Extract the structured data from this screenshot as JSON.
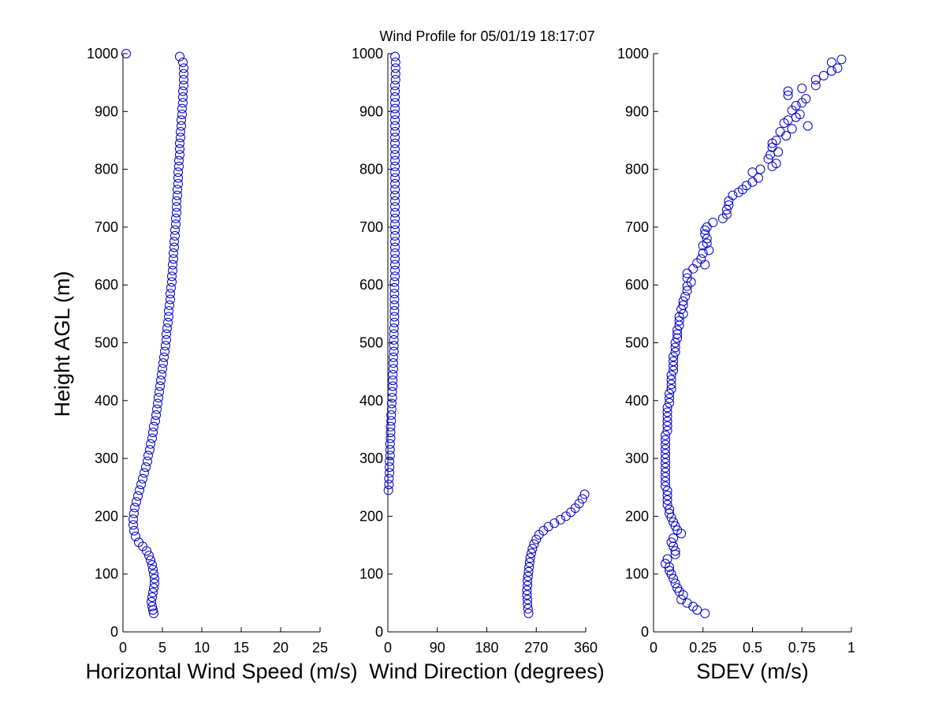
{
  "title": "Wind Profile for  05/01/19 18:17:07",
  "ylabel": "Height AGL (m)",
  "marker_color": "#0000cc",
  "chart_data": [
    {
      "type": "scatter",
      "name": "speed",
      "xlabel": "Horizontal Wind Speed (m/s)",
      "xlim": [
        0,
        25
      ],
      "xticks": [
        0,
        5,
        10,
        15,
        20,
        25
      ],
      "ylim": [
        0,
        1000
      ],
      "yticks": [
        0,
        100,
        200,
        300,
        400,
        500,
        600,
        700,
        800,
        900,
        1000
      ],
      "points": [
        [
          0.4,
          1000
        ],
        [
          7.2,
          995
        ],
        [
          7.6,
          985
        ],
        [
          7.7,
          975
        ],
        [
          7.7,
          965
        ],
        [
          7.7,
          955
        ],
        [
          7.7,
          945
        ],
        [
          7.6,
          935
        ],
        [
          7.6,
          925
        ],
        [
          7.6,
          915
        ],
        [
          7.5,
          905
        ],
        [
          7.5,
          895
        ],
        [
          7.4,
          885
        ],
        [
          7.4,
          875
        ],
        [
          7.3,
          865
        ],
        [
          7.3,
          855
        ],
        [
          7.2,
          845
        ],
        [
          7.2,
          835
        ],
        [
          7.2,
          825
        ],
        [
          7.1,
          815
        ],
        [
          7.1,
          805
        ],
        [
          7.0,
          795
        ],
        [
          7.0,
          785
        ],
        [
          7.0,
          775
        ],
        [
          6.9,
          765
        ],
        [
          6.9,
          755
        ],
        [
          6.8,
          745
        ],
        [
          6.8,
          735
        ],
        [
          6.8,
          725
        ],
        [
          6.7,
          715
        ],
        [
          6.7,
          705
        ],
        [
          6.6,
          695
        ],
        [
          6.6,
          685
        ],
        [
          6.5,
          675
        ],
        [
          6.5,
          665
        ],
        [
          6.4,
          655
        ],
        [
          6.4,
          645
        ],
        [
          6.3,
          635
        ],
        [
          6.3,
          625
        ],
        [
          6.2,
          615
        ],
        [
          6.2,
          605
        ],
        [
          6.1,
          595
        ],
        [
          6.0,
          585
        ],
        [
          6.0,
          575
        ],
        [
          5.9,
          565
        ],
        [
          5.8,
          555
        ],
        [
          5.8,
          545
        ],
        [
          5.7,
          535
        ],
        [
          5.6,
          525
        ],
        [
          5.5,
          515
        ],
        [
          5.5,
          505
        ],
        [
          5.4,
          495
        ],
        [
          5.3,
          485
        ],
        [
          5.2,
          475
        ],
        [
          5.1,
          465
        ],
        [
          5.0,
          455
        ],
        [
          4.9,
          445
        ],
        [
          4.8,
          435
        ],
        [
          4.7,
          425
        ],
        [
          4.6,
          415
        ],
        [
          4.5,
          405
        ],
        [
          4.4,
          395
        ],
        [
          4.3,
          385
        ],
        [
          4.2,
          375
        ],
        [
          4.1,
          365
        ],
        [
          3.9,
          355
        ],
        [
          3.8,
          345
        ],
        [
          3.7,
          335
        ],
        [
          3.5,
          325
        ],
        [
          3.4,
          315
        ],
        [
          3.2,
          305
        ],
        [
          3.1,
          295
        ],
        [
          2.9,
          285
        ],
        [
          2.7,
          275
        ],
        [
          2.5,
          265
        ],
        [
          2.3,
          255
        ],
        [
          2.1,
          245
        ],
        [
          1.9,
          235
        ],
        [
          1.7,
          225
        ],
        [
          1.5,
          215
        ],
        [
          1.4,
          205
        ],
        [
          1.3,
          195
        ],
        [
          1.3,
          185
        ],
        [
          1.4,
          175
        ],
        [
          1.6,
          165
        ],
        [
          2.0,
          155
        ],
        [
          2.5,
          148
        ],
        [
          3.0,
          140
        ],
        [
          3.3,
          132
        ],
        [
          3.5,
          124
        ],
        [
          3.7,
          116
        ],
        [
          3.8,
          108
        ],
        [
          3.9,
          100
        ],
        [
          4.0,
          92
        ],
        [
          4.0,
          84
        ],
        [
          3.9,
          76
        ],
        [
          3.8,
          68
        ],
        [
          3.7,
          60
        ],
        [
          3.6,
          52
        ],
        [
          3.7,
          44
        ],
        [
          3.8,
          38
        ],
        [
          3.9,
          32
        ]
      ]
    },
    {
      "type": "scatter",
      "name": "direction",
      "xlabel": "Wind Direction (degrees)",
      "xlim": [
        0,
        360
      ],
      "xticks": [
        0,
        90,
        180,
        270,
        360
      ],
      "ylim": [
        0,
        1000
      ],
      "yticks": [
        0,
        100,
        200,
        300,
        400,
        500,
        600,
        700,
        800,
        900,
        1000
      ],
      "points": [
        [
          13,
          995
        ],
        [
          14,
          985
        ],
        [
          14,
          975
        ],
        [
          14,
          965
        ],
        [
          14,
          955
        ],
        [
          13,
          945
        ],
        [
          13,
          935
        ],
        [
          13,
          925
        ],
        [
          13,
          915
        ],
        [
          13,
          905
        ],
        [
          13,
          895
        ],
        [
          13,
          885
        ],
        [
          13,
          875
        ],
        [
          13,
          865
        ],
        [
          13,
          855
        ],
        [
          13,
          845
        ],
        [
          13,
          835
        ],
        [
          13,
          825
        ],
        [
          13,
          815
        ],
        [
          13,
          805
        ],
        [
          13,
          795
        ],
        [
          13,
          785
        ],
        [
          13,
          775
        ],
        [
          13,
          765
        ],
        [
          13,
          755
        ],
        [
          13,
          745
        ],
        [
          13,
          735
        ],
        [
          13,
          725
        ],
        [
          13,
          715
        ],
        [
          13,
          705
        ],
        [
          13,
          695
        ],
        [
          13,
          685
        ],
        [
          13,
          675
        ],
        [
          13,
          665
        ],
        [
          13,
          655
        ],
        [
          13,
          645
        ],
        [
          13,
          635
        ],
        [
          13,
          625
        ],
        [
          13,
          615
        ],
        [
          12,
          605
        ],
        [
          12,
          595
        ],
        [
          12,
          585
        ],
        [
          12,
          575
        ],
        [
          12,
          565
        ],
        [
          12,
          555
        ],
        [
          12,
          545
        ],
        [
          12,
          535
        ],
        [
          11,
          525
        ],
        [
          11,
          515
        ],
        [
          11,
          505
        ],
        [
          11,
          495
        ],
        [
          11,
          485
        ],
        [
          10,
          475
        ],
        [
          10,
          465
        ],
        [
          10,
          455
        ],
        [
          9,
          445
        ],
        [
          9,
          435
        ],
        [
          9,
          425
        ],
        [
          8,
          415
        ],
        [
          8,
          405
        ],
        [
          7,
          395
        ],
        [
          7,
          385
        ],
        [
          6,
          375
        ],
        [
          6,
          365
        ],
        [
          5,
          355
        ],
        [
          5,
          345
        ],
        [
          5,
          335
        ],
        [
          4,
          325
        ],
        [
          4,
          315
        ],
        [
          4,
          305
        ],
        [
          3,
          295
        ],
        [
          3,
          285
        ],
        [
          3,
          275
        ],
        [
          2,
          265
        ],
        [
          2,
          255
        ],
        [
          1,
          245
        ],
        [
          358,
          238
        ],
        [
          354,
          230
        ],
        [
          348,
          222
        ],
        [
          341,
          214
        ],
        [
          333,
          207
        ],
        [
          324,
          200
        ],
        [
          314,
          194
        ],
        [
          303,
          188
        ],
        [
          292,
          182
        ],
        [
          283,
          175
        ],
        [
          275,
          168
        ],
        [
          270,
          160
        ],
        [
          266,
          152
        ],
        [
          263,
          144
        ],
        [
          261,
          136
        ],
        [
          259,
          128
        ],
        [
          258,
          120
        ],
        [
          257,
          112
        ],
        [
          256,
          104
        ],
        [
          255,
          96
        ],
        [
          254,
          88
        ],
        [
          254,
          80
        ],
        [
          253,
          72
        ],
        [
          253,
          64
        ],
        [
          254,
          56
        ],
        [
          254,
          48
        ],
        [
          255,
          40
        ],
        [
          256,
          32
        ]
      ]
    },
    {
      "type": "scatter",
      "name": "sdev",
      "xlabel": "SDEV  (m/s)",
      "xlim": [
        0,
        1
      ],
      "xticks": [
        0,
        0.25,
        0.5,
        0.75,
        1
      ],
      "ylim": [
        0,
        1000
      ],
      "yticks": [
        0,
        100,
        200,
        300,
        400,
        500,
        600,
        700,
        800,
        900,
        1000
      ],
      "points": [
        [
          0.95,
          990
        ],
        [
          0.9,
          985
        ],
        [
          0.93,
          975
        ],
        [
          0.9,
          970
        ],
        [
          0.86,
          962
        ],
        [
          0.82,
          955
        ],
        [
          0.82,
          945
        ],
        [
          0.75,
          940
        ],
        [
          0.68,
          935
        ],
        [
          0.68,
          928
        ],
        [
          0.77,
          922
        ],
        [
          0.75,
          915
        ],
        [
          0.72,
          910
        ],
        [
          0.7,
          902
        ],
        [
          0.74,
          895
        ],
        [
          0.72,
          890
        ],
        [
          0.68,
          885
        ],
        [
          0.66,
          880
        ],
        [
          0.78,
          875
        ],
        [
          0.7,
          870
        ],
        [
          0.64,
          865
        ],
        [
          0.67,
          858
        ],
        [
          0.62,
          850
        ],
        [
          0.6,
          845
        ],
        [
          0.6,
          838
        ],
        [
          0.63,
          830
        ],
        [
          0.59,
          825
        ],
        [
          0.58,
          818
        ],
        [
          0.62,
          810
        ],
        [
          0.6,
          805
        ],
        [
          0.54,
          800
        ],
        [
          0.5,
          795
        ],
        [
          0.53,
          785
        ],
        [
          0.5,
          778
        ],
        [
          0.47,
          772
        ],
        [
          0.45,
          765
        ],
        [
          0.43,
          760
        ],
        [
          0.4,
          755
        ],
        [
          0.38,
          745
        ],
        [
          0.38,
          738
        ],
        [
          0.37,
          730
        ],
        [
          0.37,
          722
        ],
        [
          0.35,
          715
        ],
        [
          0.3,
          708
        ],
        [
          0.27,
          700
        ],
        [
          0.26,
          695
        ],
        [
          0.26,
          688
        ],
        [
          0.27,
          680
        ],
        [
          0.27,
          672
        ],
        [
          0.25,
          668
        ],
        [
          0.28,
          660
        ],
        [
          0.25,
          655
        ],
        [
          0.24,
          645
        ],
        [
          0.22,
          638
        ],
        [
          0.26,
          635
        ],
        [
          0.2,
          628
        ],
        [
          0.17,
          620
        ],
        [
          0.17,
          612
        ],
        [
          0.19,
          605
        ],
        [
          0.17,
          598
        ],
        [
          0.17,
          590
        ],
        [
          0.16,
          580
        ],
        [
          0.15,
          572
        ],
        [
          0.15,
          565
        ],
        [
          0.14,
          558
        ],
        [
          0.15,
          550
        ],
        [
          0.13,
          545
        ],
        [
          0.13,
          538
        ],
        [
          0.13,
          530
        ],
        [
          0.12,
          522
        ],
        [
          0.12,
          515
        ],
        [
          0.12,
          508
        ],
        [
          0.11,
          500
        ],
        [
          0.11,
          492
        ],
        [
          0.11,
          484
        ],
        [
          0.1,
          476
        ],
        [
          0.1,
          468
        ],
        [
          0.1,
          460
        ],
        [
          0.1,
          452
        ],
        [
          0.09,
          444
        ],
        [
          0.09,
          436
        ],
        [
          0.09,
          428
        ],
        [
          0.09,
          420
        ],
        [
          0.08,
          412
        ],
        [
          0.08,
          404
        ],
        [
          0.08,
          396
        ],
        [
          0.07,
          388
        ],
        [
          0.07,
          380
        ],
        [
          0.07,
          372
        ],
        [
          0.07,
          364
        ],
        [
          0.07,
          356
        ],
        [
          0.07,
          348
        ],
        [
          0.06,
          340
        ],
        [
          0.06,
          332
        ],
        [
          0.06,
          324
        ],
        [
          0.06,
          316
        ],
        [
          0.06,
          308
        ],
        [
          0.06,
          300
        ],
        [
          0.06,
          292
        ],
        [
          0.06,
          284
        ],
        [
          0.06,
          276
        ],
        [
          0.06,
          268
        ],
        [
          0.06,
          260
        ],
        [
          0.06,
          252
        ],
        [
          0.07,
          244
        ],
        [
          0.07,
          236
        ],
        [
          0.07,
          228
        ],
        [
          0.07,
          220
        ],
        [
          0.08,
          212
        ],
        [
          0.08,
          205
        ],
        [
          0.09,
          198
        ],
        [
          0.1,
          190
        ],
        [
          0.11,
          183
        ],
        [
          0.12,
          176
        ],
        [
          0.14,
          170
        ],
        [
          0.1,
          162
        ],
        [
          0.09,
          155
        ],
        [
          0.1,
          148
        ],
        [
          0.11,
          140
        ],
        [
          0.11,
          134
        ],
        [
          0.07,
          126
        ],
        [
          0.06,
          118
        ],
        [
          0.08,
          112
        ],
        [
          0.08,
          106
        ],
        [
          0.09,
          100
        ],
        [
          0.1,
          92
        ],
        [
          0.11,
          84
        ],
        [
          0.12,
          76
        ],
        [
          0.13,
          70
        ],
        [
          0.15,
          64
        ],
        [
          0.14,
          56
        ],
        [
          0.17,
          50
        ],
        [
          0.2,
          44
        ],
        [
          0.22,
          38
        ],
        [
          0.26,
          32
        ]
      ]
    }
  ]
}
